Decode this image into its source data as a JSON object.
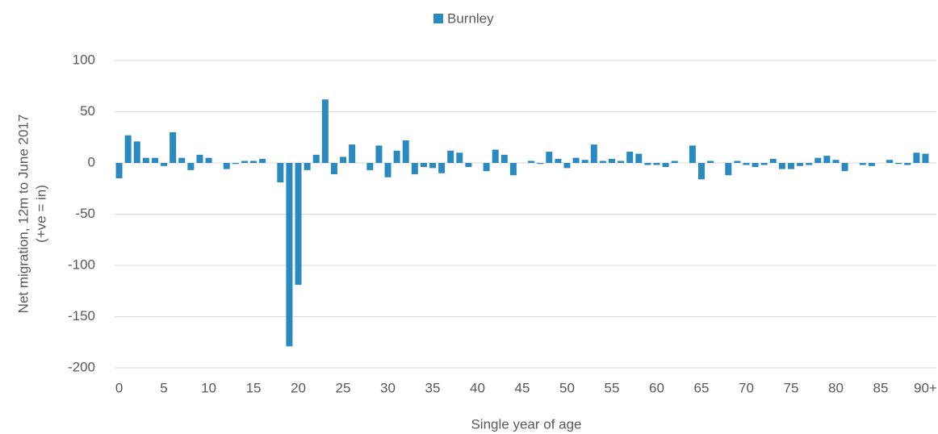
{
  "chart_data": {
    "type": "bar",
    "series": [
      {
        "name": "Burnley",
        "color": "#2a8abf",
        "values": [
          -15,
          27,
          21,
          5,
          5,
          -3,
          30,
          5,
          -7,
          8,
          5,
          0,
          -6,
          -1,
          2,
          2,
          4,
          0,
          -19,
          -179,
          -119,
          -7,
          8,
          62,
          -11,
          6,
          18,
          0,
          -7,
          17,
          -14,
          12,
          22,
          -11,
          -4,
          -5,
          -10,
          12,
          10,
          -4,
          0,
          -8,
          13,
          8,
          -12,
          0,
          2,
          -1,
          11,
          4,
          -5,
          5,
          3,
          18,
          2,
          4,
          2,
          11,
          9,
          -2,
          -2,
          -4,
          2,
          0,
          17,
          -16,
          2,
          0,
          -12,
          2,
          -2,
          -4,
          -2,
          4,
          -6,
          -6,
          -3,
          -2,
          5,
          7,
          3,
          -8,
          0,
          -2,
          -3,
          0,
          3,
          -1,
          -2,
          10,
          9
        ]
      }
    ],
    "categories": [
      "0",
      null,
      null,
      null,
      null,
      "5",
      null,
      null,
      null,
      null,
      "10",
      null,
      null,
      null,
      null,
      "15",
      null,
      null,
      null,
      null,
      "20",
      null,
      null,
      null,
      null,
      "25",
      null,
      null,
      null,
      null,
      "30",
      null,
      null,
      null,
      null,
      "35",
      null,
      null,
      null,
      null,
      "40",
      null,
      null,
      null,
      null,
      "45",
      null,
      null,
      null,
      null,
      "50",
      null,
      null,
      null,
      null,
      "55",
      null,
      null,
      null,
      null,
      "60",
      null,
      null,
      null,
      null,
      "65",
      null,
      null,
      null,
      null,
      "70",
      null,
      null,
      null,
      null,
      "75",
      null,
      null,
      null,
      null,
      "80",
      null,
      null,
      null,
      null,
      "85",
      null,
      null,
      null,
      null,
      "90+"
    ],
    "x_label": "Single year of age",
    "y_label": [
      "Net migration, 12m to June 2017",
      "(+ve = in)"
    ],
    "ylim": [
      -200,
      100
    ],
    "yticks": [
      -200,
      -150,
      -100,
      -50,
      0,
      50,
      100
    ],
    "grid": true,
    "legend": "top"
  }
}
